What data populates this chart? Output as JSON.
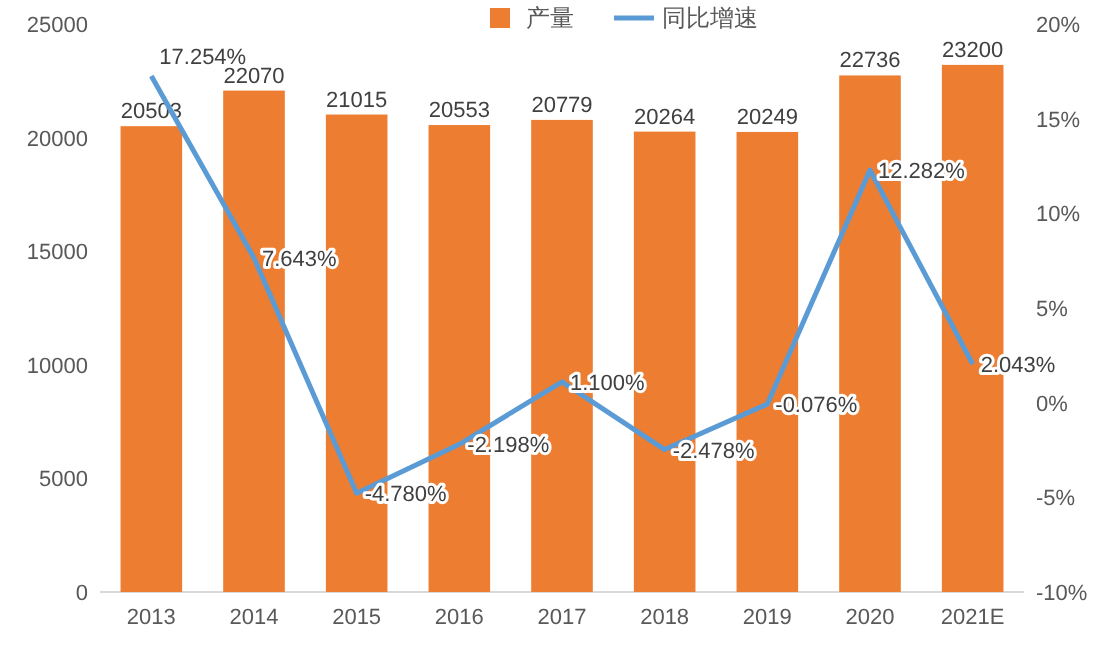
{
  "chart_data": {
    "type": "bar",
    "categories": [
      "2013",
      "2014",
      "2015",
      "2016",
      "2017",
      "2018",
      "2019",
      "2020",
      "2021E"
    ],
    "series": [
      {
        "name": "产量",
        "color": "#ed7d31",
        "values": [
          20503,
          22070,
          21015,
          20553,
          20779,
          20264,
          20249,
          22736,
          23200
        ],
        "value_labels": [
          "20503",
          "22070",
          "21015",
          "20553",
          "20779",
          "20264",
          "20249",
          "22736",
          "23200"
        ]
      },
      {
        "name": "同比增速",
        "type": "line",
        "axis": "y2",
        "color": "#5b9bd5",
        "values": [
          17.254,
          7.643,
          -4.78,
          -2.198,
          1.1,
          -2.478,
          -0.076,
          12.282,
          2.043
        ],
        "value_labels": [
          "17.254%",
          "7.643%",
          "-4.780%",
          "-2.198%",
          "1.100%",
          "-2.478%",
          "-0.076%",
          "12.282%",
          "2.043%"
        ]
      }
    ],
    "ylim": [
      0,
      25000
    ],
    "yticks": [
      0,
      5000,
      10000,
      15000,
      20000,
      25000
    ],
    "y2lim": [
      -10,
      20
    ],
    "y2ticks": [
      {
        "value": -10,
        "label": "-10%"
      },
      {
        "value": -5,
        "label": "-5%"
      },
      {
        "value": 0,
        "label": "0%"
      },
      {
        "value": 5,
        "label": "5%"
      },
      {
        "value": 10,
        "label": "10%"
      },
      {
        "value": 15,
        "label": "15%"
      },
      {
        "value": 20,
        "label": "20%"
      }
    ],
    "legend": "top",
    "grid": false,
    "marker": "none"
  }
}
